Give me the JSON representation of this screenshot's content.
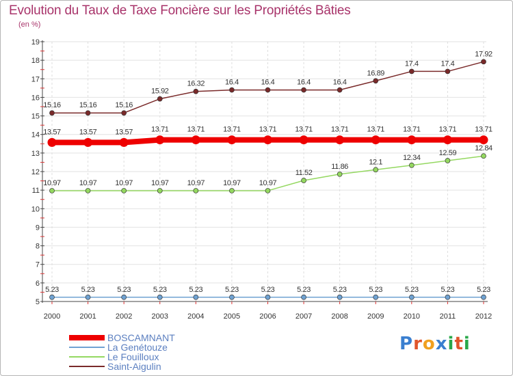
{
  "title": "Evolution du Taux de Taxe Foncière sur les Propriétés Bâties",
  "subtitle": "(en %)",
  "logo": {
    "text": "Proxiti",
    "letters": [
      "P",
      "r",
      "o",
      "x",
      "i",
      "t",
      "i"
    ],
    "colors": [
      "#3a7fd0",
      "#e0552b",
      "#f0a020",
      "#3a7fd0",
      "#2aa84a",
      "#e0552b",
      "#2aa84a"
    ]
  },
  "chart_data": {
    "type": "line",
    "title": "Evolution du Taux de Taxe Foncière sur les Propriétés Bâties",
    "ylabel": "(en %)",
    "xlabel": "",
    "ylim": [
      5,
      19
    ],
    "yticks": [
      "5",
      "6",
      "7",
      "8",
      "9",
      "10",
      "11",
      "12",
      "13",
      "14",
      "15",
      "16",
      "17",
      "18",
      "19"
    ],
    "categories": [
      "2000",
      "2001",
      "2002",
      "2003",
      "2004",
      "2005",
      "2006",
      "2007",
      "2008",
      "2009",
      "2010",
      "2011",
      "2012"
    ],
    "series": [
      {
        "name": "BOSCAMNANT",
        "color": "#ee0000",
        "values": [
          13.57,
          13.57,
          13.57,
          13.71,
          13.71,
          13.71,
          13.71,
          13.71,
          13.71,
          13.71,
          13.71,
          13.71,
          13.71
        ],
        "labels": [
          "13.57",
          "13.57",
          "13.57",
          "13.71",
          "13.71",
          "13.71",
          "13.71",
          "13.71",
          "13.71",
          "13.71",
          "13.71",
          "13.71",
          "13.71"
        ]
      },
      {
        "name": "La Genétouze",
        "color": "#6fa2d2",
        "values": [
          5.23,
          5.23,
          5.23,
          5.23,
          5.23,
          5.23,
          5.23,
          5.23,
          5.23,
          5.23,
          5.23,
          5.23,
          5.23
        ],
        "labels": [
          "5.23",
          "5.23",
          "5.23",
          "5.23",
          "5.23",
          "5.23",
          "5.23",
          "5.23",
          "5.23",
          "5.23",
          "5.23",
          "5.23",
          "5.23"
        ]
      },
      {
        "name": "Le Fouilloux",
        "color": "#94d860",
        "values": [
          10.97,
          10.97,
          10.97,
          10.97,
          10.97,
          10.97,
          10.97,
          11.52,
          11.86,
          12.1,
          12.34,
          12.59,
          12.84
        ],
        "labels": [
          "10.97",
          "10.97",
          "10.97",
          "10.97",
          "10.97",
          "10.97",
          "10.97",
          "11.52",
          "11.86",
          "12.1",
          "12.34",
          "12.59",
          "12.84"
        ]
      },
      {
        "name": "Saint-Aigulin",
        "color": "#7a2a2a",
        "values": [
          15.16,
          15.16,
          15.16,
          15.92,
          16.32,
          16.4,
          16.4,
          16.4,
          16.4,
          16.89,
          17.4,
          17.4,
          17.92
        ],
        "labels": [
          "15.16",
          "15.16",
          "15.16",
          "15.92",
          "16.32",
          "16.4",
          "16.4",
          "16.4",
          "16.4",
          "16.89",
          "17.4",
          "17.4",
          "17.92"
        ]
      }
    ]
  }
}
